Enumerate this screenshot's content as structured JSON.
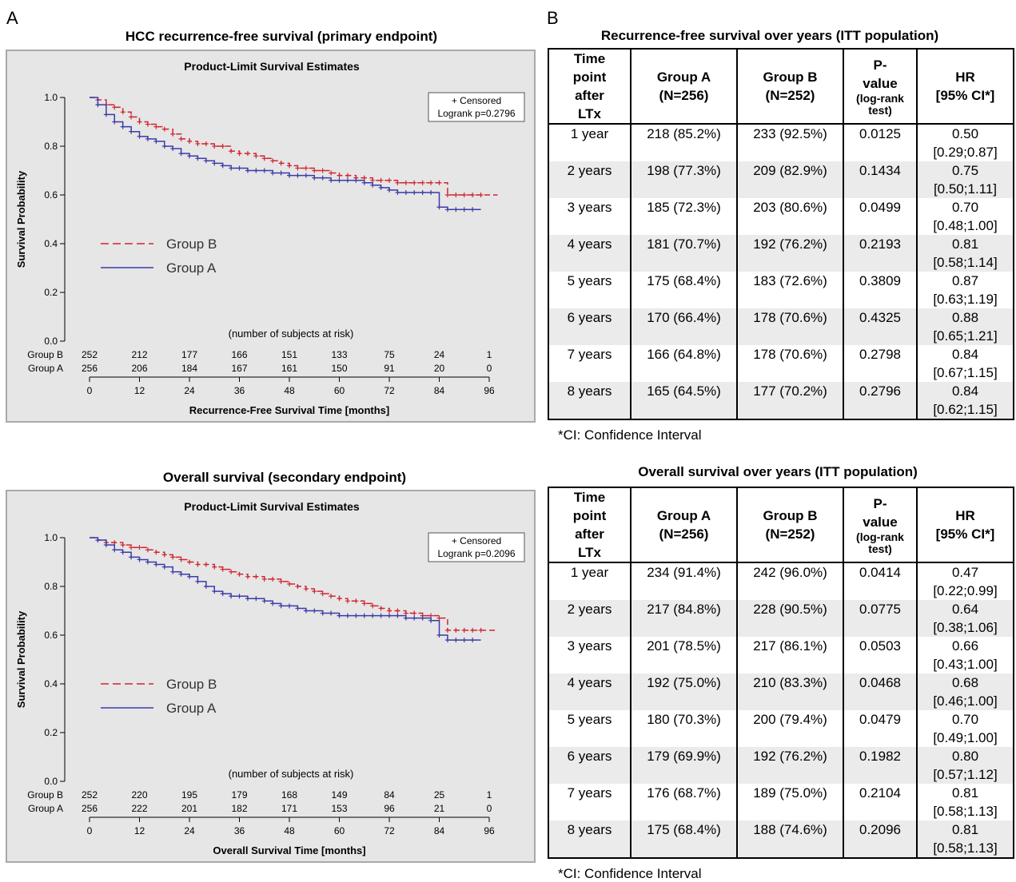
{
  "panel_a_label": "A",
  "panel_b_label": "B",
  "colors": {
    "group_a": "#3b3ba8",
    "group_b": "#d0242f",
    "plot_bg": "#e6e6e6"
  },
  "chart_data": [
    {
      "type": "line",
      "heading": "HCC recurrence-free survival (primary endpoint)",
      "title": "Product-Limit Survival Estimates",
      "xlabel": "Recurrence-Free Survival Time [months]",
      "ylabel": "Survival Probability",
      "xlim": [
        0,
        96
      ],
      "ylim": [
        0,
        1
      ],
      "x_ticks": [
        "0",
        "12",
        "24",
        "36",
        "48",
        "60",
        "72",
        "84",
        "96"
      ],
      "y_ticks": [
        "0.0",
        "0.2",
        "0.4",
        "0.6",
        "0.8",
        "1.0"
      ],
      "censored_label": "+ Censored",
      "logrank_label": "Logrank p=0.2796",
      "series": [
        {
          "name": "Group B",
          "style": "dashed",
          "x": [
            0,
            2,
            4,
            6,
            8,
            10,
            12,
            14,
            16,
            18,
            20,
            22,
            24,
            26,
            28,
            30,
            32,
            34,
            36,
            38,
            40,
            42,
            44,
            46,
            48,
            50,
            52,
            54,
            56,
            58,
            60,
            62,
            64,
            66,
            68,
            70,
            72,
            74,
            76,
            78,
            80,
            82,
            84,
            86,
            88,
            90,
            92,
            94,
            98
          ],
          "y": [
            1.0,
            0.99,
            0.97,
            0.96,
            0.94,
            0.92,
            0.9,
            0.89,
            0.88,
            0.87,
            0.85,
            0.83,
            0.82,
            0.81,
            0.81,
            0.8,
            0.8,
            0.78,
            0.77,
            0.77,
            0.76,
            0.75,
            0.74,
            0.73,
            0.72,
            0.71,
            0.71,
            0.7,
            0.7,
            0.69,
            0.68,
            0.68,
            0.67,
            0.67,
            0.66,
            0.66,
            0.66,
            0.65,
            0.65,
            0.65,
            0.65,
            0.65,
            0.65,
            0.6,
            0.6,
            0.6,
            0.6,
            0.6,
            0.6
          ]
        },
        {
          "name": "Group A",
          "style": "solid",
          "x": [
            0,
            2,
            4,
            6,
            8,
            10,
            12,
            14,
            16,
            18,
            20,
            22,
            24,
            26,
            28,
            30,
            32,
            34,
            36,
            38,
            40,
            42,
            44,
            46,
            48,
            50,
            52,
            54,
            56,
            58,
            60,
            62,
            64,
            66,
            68,
            70,
            72,
            74,
            76,
            78,
            80,
            82,
            84,
            86,
            88,
            90,
            92,
            94
          ],
          "y": [
            1.0,
            0.97,
            0.93,
            0.9,
            0.88,
            0.86,
            0.84,
            0.83,
            0.82,
            0.8,
            0.79,
            0.77,
            0.76,
            0.75,
            0.74,
            0.73,
            0.72,
            0.71,
            0.71,
            0.7,
            0.7,
            0.7,
            0.69,
            0.69,
            0.68,
            0.68,
            0.68,
            0.67,
            0.67,
            0.66,
            0.66,
            0.66,
            0.66,
            0.65,
            0.64,
            0.63,
            0.62,
            0.61,
            0.61,
            0.61,
            0.61,
            0.61,
            0.55,
            0.54,
            0.54,
            0.54,
            0.54,
            0.54
          ]
        }
      ],
      "risk_table": {
        "caption": "(number of subjects at risk)",
        "rows": [
          {
            "label": "Group B",
            "values": [
              "252",
              "212",
              "177",
              "166",
              "151",
              "133",
              "75",
              "24",
              "1"
            ]
          },
          {
            "label": "Group A",
            "values": [
              "256",
              "206",
              "184",
              "167",
              "161",
              "150",
              "91",
              "20",
              "0"
            ]
          }
        ]
      }
    },
    {
      "type": "line",
      "heading": "Overall survival (secondary endpoint)",
      "title": "Product-Limit Survival Estimates",
      "xlabel": "Overall Survival Time [months]",
      "ylabel": "Survival Probability",
      "xlim": [
        0,
        96
      ],
      "ylim": [
        0,
        1
      ],
      "x_ticks": [
        "0",
        "12",
        "24",
        "36",
        "48",
        "60",
        "72",
        "84",
        "96"
      ],
      "y_ticks": [
        "0.0",
        "0.2",
        "0.4",
        "0.6",
        "0.8",
        "1.0"
      ],
      "censored_label": "+ Censored",
      "logrank_label": "Logrank p=0.2096",
      "series": [
        {
          "name": "Group B",
          "style": "dashed",
          "x": [
            0,
            2,
            4,
            6,
            8,
            10,
            12,
            14,
            16,
            18,
            20,
            22,
            24,
            26,
            28,
            30,
            32,
            34,
            36,
            38,
            40,
            42,
            44,
            46,
            48,
            50,
            52,
            54,
            56,
            58,
            60,
            62,
            64,
            66,
            68,
            70,
            72,
            74,
            76,
            78,
            80,
            82,
            84,
            86,
            88,
            90,
            92,
            94,
            98
          ],
          "y": [
            1.0,
            0.99,
            0.98,
            0.98,
            0.97,
            0.96,
            0.96,
            0.95,
            0.94,
            0.93,
            0.92,
            0.91,
            0.9,
            0.89,
            0.89,
            0.88,
            0.87,
            0.86,
            0.85,
            0.84,
            0.84,
            0.83,
            0.83,
            0.82,
            0.81,
            0.8,
            0.79,
            0.78,
            0.77,
            0.76,
            0.75,
            0.74,
            0.74,
            0.73,
            0.72,
            0.71,
            0.7,
            0.7,
            0.69,
            0.69,
            0.68,
            0.68,
            0.67,
            0.62,
            0.62,
            0.62,
            0.62,
            0.62,
            0.62
          ]
        },
        {
          "name": "Group A",
          "style": "solid",
          "x": [
            0,
            2,
            4,
            6,
            8,
            10,
            12,
            14,
            16,
            18,
            20,
            22,
            24,
            26,
            28,
            30,
            32,
            34,
            36,
            38,
            40,
            42,
            44,
            46,
            48,
            50,
            52,
            54,
            56,
            58,
            60,
            62,
            64,
            66,
            68,
            70,
            72,
            74,
            76,
            78,
            80,
            82,
            84,
            86,
            88,
            90,
            92,
            94
          ],
          "y": [
            1.0,
            0.99,
            0.97,
            0.95,
            0.94,
            0.92,
            0.91,
            0.9,
            0.89,
            0.88,
            0.86,
            0.85,
            0.84,
            0.82,
            0.8,
            0.78,
            0.77,
            0.76,
            0.76,
            0.75,
            0.75,
            0.74,
            0.73,
            0.72,
            0.72,
            0.71,
            0.7,
            0.7,
            0.69,
            0.69,
            0.68,
            0.68,
            0.68,
            0.68,
            0.68,
            0.68,
            0.68,
            0.68,
            0.67,
            0.67,
            0.67,
            0.66,
            0.6,
            0.58,
            0.58,
            0.58,
            0.58,
            0.58
          ]
        }
      ],
      "risk_table": {
        "caption": "(number of subjects at risk)",
        "rows": [
          {
            "label": "Group B",
            "values": [
              "252",
              "220",
              "195",
              "179",
              "168",
              "149",
              "84",
              "25",
              "1"
            ]
          },
          {
            "label": "Group A",
            "values": [
              "256",
              "222",
              "201",
              "182",
              "171",
              "153",
              "96",
              "21",
              "0"
            ]
          }
        ]
      }
    }
  ],
  "tables": [
    {
      "heading": "Recurrence-free survival over years (ITT population)",
      "headers": {
        "time_point": [
          "Time",
          "point",
          "after",
          "LTx"
        ],
        "group_a": [
          "Group A",
          "(N=256)"
        ],
        "group_b": [
          "Group B",
          "(N=252)"
        ],
        "p_value": [
          "P-",
          "value"
        ],
        "p_value_small": [
          "(log-rank",
          "test)"
        ],
        "hr": [
          "HR",
          "[95% CI*]"
        ]
      },
      "rows": [
        {
          "time": "1 year",
          "group_a": "218 (85.2%)",
          "group_b": "233 (92.5%)",
          "p": "0.0125",
          "hr": "0.50",
          "ci": "[0.29;0.87]"
        },
        {
          "time": "2 years",
          "group_a": "198 (77.3%)",
          "group_b": "209 (82.9%)",
          "p": "0.1434",
          "hr": "0.75",
          "ci": "[0.50;1.11]"
        },
        {
          "time": "3 years",
          "group_a": "185 (72.3%)",
          "group_b": "203 (80.6%)",
          "p": "0.0499",
          "hr": "0.70",
          "ci": "[0.48;1.00]"
        },
        {
          "time": "4 years",
          "group_a": "181 (70.7%)",
          "group_b": "192 (76.2%)",
          "p": "0.2193",
          "hr": "0.81",
          "ci": "[0.58;1.14]"
        },
        {
          "time": "5 years",
          "group_a": "175 (68.4%)",
          "group_b": "183 (72.6%)",
          "p": "0.3809",
          "hr": "0.87",
          "ci": "[0.63;1.19]"
        },
        {
          "time": "6 years",
          "group_a": "170 (66.4%)",
          "group_b": "178 (70.6%)",
          "p": "0.4325",
          "hr": "0.88",
          "ci": "[0.65;1.21]"
        },
        {
          "time": "7 years",
          "group_a": "166 (64.8%)",
          "group_b": "178 (70.6%)",
          "p": "0.2798",
          "hr": "0.84",
          "ci": "[0.67;1.15]"
        },
        {
          "time": "8 years",
          "group_a": "165 (64.5%)",
          "group_b": "177 (70.2%)",
          "p": "0.2796",
          "hr": "0.84",
          "ci": "[0.62;1.15]"
        }
      ],
      "footnote": "*CI: Confidence Interval"
    },
    {
      "heading": "Overall survival over years (ITT population)",
      "headers": {
        "time_point": [
          "Time",
          "point",
          "after",
          "LTx"
        ],
        "group_a": [
          "Group A",
          "(N=256)"
        ],
        "group_b": [
          "Group B",
          "(N=252)"
        ],
        "p_value": [
          "P-",
          "value"
        ],
        "p_value_small": [
          "(log-rank",
          "test)"
        ],
        "hr": [
          "HR",
          "[95% CI*]"
        ]
      },
      "rows": [
        {
          "time": "1 year",
          "group_a": "234 (91.4%)",
          "group_b": "242 (96.0%)",
          "p": "0.0414",
          "hr": "0.47",
          "ci": "[0.22;0.99]"
        },
        {
          "time": "2 years",
          "group_a": "217 (84.8%)",
          "group_b": "228 (90.5%)",
          "p": "0.0775",
          "hr": "0.64",
          "ci": "[0.38;1.06]"
        },
        {
          "time": "3 years",
          "group_a": "201 (78.5%)",
          "group_b": "217 (86.1%)",
          "p": "0.0503",
          "hr": "0.66",
          "ci": "[0.43;1.00]"
        },
        {
          "time": "4 years",
          "group_a": "192 (75.0%)",
          "group_b": "210 (83.3%)",
          "p": "0.0468",
          "hr": "0.68",
          "ci": "[0.46;1.00]"
        },
        {
          "time": "5 years",
          "group_a": "180 (70.3%)",
          "group_b": "200 (79.4%)",
          "p": "0.0479",
          "hr": "0.70",
          "ci": "[0.49;1.00]"
        },
        {
          "time": "6 years",
          "group_a": "179 (69.9%)",
          "group_b": "192 (76.2%)",
          "p": "0.1982",
          "hr": "0.80",
          "ci": "[0.57;1.12]"
        },
        {
          "time": "7 years",
          "group_a": "176 (68.7%)",
          "group_b": "189 (75.0%)",
          "p": "0.2104",
          "hr": "0.81",
          "ci": "[0.58;1.13]"
        },
        {
          "time": "8 years",
          "group_a": "175 (68.4%)",
          "group_b": "188 (74.6%)",
          "p": "0.2096",
          "hr": "0.81",
          "ci": "[0.58;1.13]"
        }
      ],
      "footnote": "*CI: Confidence Interval"
    }
  ]
}
